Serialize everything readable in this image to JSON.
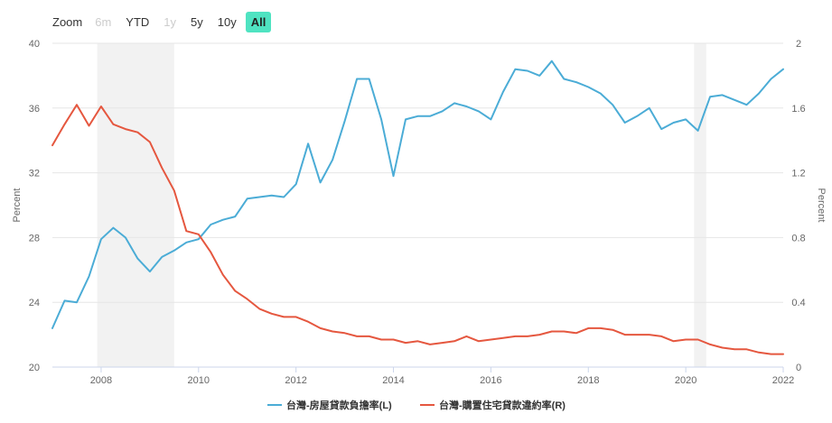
{
  "zoom": {
    "label": "Zoom",
    "buttons": [
      {
        "label": "6m",
        "state": "disabled"
      },
      {
        "label": "YTD",
        "state": "normal"
      },
      {
        "label": "1y",
        "state": "disabled"
      },
      {
        "label": "5y",
        "state": "normal"
      },
      {
        "label": "10y",
        "state": "normal"
      },
      {
        "label": "All",
        "state": "active"
      }
    ]
  },
  "chart_data": {
    "type": "line",
    "xlim": [
      2007.0,
      2022.0
    ],
    "x_ticks": [
      2008,
      2010,
      2012,
      2014,
      2016,
      2018,
      2020,
      2022
    ],
    "y_left": {
      "label": "Percent",
      "ylim": [
        20,
        40
      ],
      "ticks": [
        20,
        24,
        28,
        32,
        36,
        40
      ]
    },
    "y_right": {
      "label": "Percent",
      "ylim": [
        0,
        2
      ],
      "ticks": [
        0,
        0.4,
        0.8,
        1.2,
        1.6,
        2
      ]
    },
    "grid": true,
    "legend_position": "bottom-center",
    "shaded_periods": [
      [
        2007.92,
        2009.5
      ],
      [
        2020.17,
        2020.42
      ]
    ],
    "series": [
      {
        "name": "台灣-房屋貸款負擔率(L)",
        "axis": "left",
        "color": "#4bacd6",
        "points": [
          [
            2007.0,
            22.4
          ],
          [
            2007.25,
            24.1
          ],
          [
            2007.5,
            24.0
          ],
          [
            2007.75,
            25.6
          ],
          [
            2008.0,
            27.9
          ],
          [
            2008.25,
            28.6
          ],
          [
            2008.5,
            28.0
          ],
          [
            2008.75,
            26.7
          ],
          [
            2009.0,
            25.9
          ],
          [
            2009.25,
            26.8
          ],
          [
            2009.5,
            27.2
          ],
          [
            2009.75,
            27.7
          ],
          [
            2010.0,
            27.9
          ],
          [
            2010.25,
            28.8
          ],
          [
            2010.5,
            29.1
          ],
          [
            2010.75,
            29.3
          ],
          [
            2011.0,
            30.4
          ],
          [
            2011.25,
            30.5
          ],
          [
            2011.5,
            30.6
          ],
          [
            2011.75,
            30.5
          ],
          [
            2012.0,
            31.3
          ],
          [
            2012.25,
            33.8
          ],
          [
            2012.5,
            31.4
          ],
          [
            2012.75,
            32.8
          ],
          [
            2013.0,
            35.2
          ],
          [
            2013.25,
            37.8
          ],
          [
            2013.5,
            37.8
          ],
          [
            2013.75,
            35.3
          ],
          [
            2014.0,
            31.8
          ],
          [
            2014.25,
            35.3
          ],
          [
            2014.5,
            35.5
          ],
          [
            2014.75,
            35.5
          ],
          [
            2015.0,
            35.8
          ],
          [
            2015.25,
            36.3
          ],
          [
            2015.5,
            36.1
          ],
          [
            2015.75,
            35.8
          ],
          [
            2016.0,
            35.3
          ],
          [
            2016.25,
            37.0
          ],
          [
            2016.5,
            38.4
          ],
          [
            2016.75,
            38.3
          ],
          [
            2017.0,
            38.0
          ],
          [
            2017.25,
            38.9
          ],
          [
            2017.5,
            37.8
          ],
          [
            2017.75,
            37.6
          ],
          [
            2018.0,
            37.3
          ],
          [
            2018.25,
            36.9
          ],
          [
            2018.5,
            36.2
          ],
          [
            2018.75,
            35.1
          ],
          [
            2019.0,
            35.5
          ],
          [
            2019.25,
            36.0
          ],
          [
            2019.5,
            34.7
          ],
          [
            2019.75,
            35.1
          ],
          [
            2020.0,
            35.3
          ],
          [
            2020.25,
            34.6
          ],
          [
            2020.5,
            36.7
          ],
          [
            2020.75,
            36.8
          ],
          [
            2021.0,
            36.5
          ],
          [
            2021.25,
            36.2
          ],
          [
            2021.5,
            36.9
          ],
          [
            2021.75,
            37.8
          ],
          [
            2022.0,
            38.4
          ]
        ]
      },
      {
        "name": "台灣-購置住宅貸款違約率(R)",
        "axis": "right",
        "color": "#e5573f",
        "points": [
          [
            2007.0,
            1.37
          ],
          [
            2007.25,
            1.5
          ],
          [
            2007.5,
            1.62
          ],
          [
            2007.75,
            1.49
          ],
          [
            2008.0,
            1.61
          ],
          [
            2008.25,
            1.5
          ],
          [
            2008.5,
            1.47
          ],
          [
            2008.75,
            1.45
          ],
          [
            2009.0,
            1.39
          ],
          [
            2009.25,
            1.23
          ],
          [
            2009.5,
            1.09
          ],
          [
            2009.75,
            0.84
          ],
          [
            2010.0,
            0.82
          ],
          [
            2010.25,
            0.71
          ],
          [
            2010.5,
            0.57
          ],
          [
            2010.75,
            0.47
          ],
          [
            2011.0,
            0.42
          ],
          [
            2011.25,
            0.36
          ],
          [
            2011.5,
            0.33
          ],
          [
            2011.75,
            0.31
          ],
          [
            2012.0,
            0.31
          ],
          [
            2012.25,
            0.28
          ],
          [
            2012.5,
            0.24
          ],
          [
            2012.75,
            0.22
          ],
          [
            2013.0,
            0.21
          ],
          [
            2013.25,
            0.19
          ],
          [
            2013.5,
            0.19
          ],
          [
            2013.75,
            0.17
          ],
          [
            2014.0,
            0.17
          ],
          [
            2014.25,
            0.15
          ],
          [
            2014.5,
            0.16
          ],
          [
            2014.75,
            0.14
          ],
          [
            2015.0,
            0.15
          ],
          [
            2015.25,
            0.16
          ],
          [
            2015.5,
            0.19
          ],
          [
            2015.75,
            0.16
          ],
          [
            2016.0,
            0.17
          ],
          [
            2016.25,
            0.18
          ],
          [
            2016.5,
            0.19
          ],
          [
            2016.75,
            0.19
          ],
          [
            2017.0,
            0.2
          ],
          [
            2017.25,
            0.22
          ],
          [
            2017.5,
            0.22
          ],
          [
            2017.75,
            0.21
          ],
          [
            2018.0,
            0.24
          ],
          [
            2018.25,
            0.24
          ],
          [
            2018.5,
            0.23
          ],
          [
            2018.75,
            0.2
          ],
          [
            2019.0,
            0.2
          ],
          [
            2019.25,
            0.2
          ],
          [
            2019.5,
            0.19
          ],
          [
            2019.75,
            0.16
          ],
          [
            2020.0,
            0.17
          ],
          [
            2020.25,
            0.17
          ],
          [
            2020.5,
            0.14
          ],
          [
            2020.75,
            0.12
          ],
          [
            2021.0,
            0.11
          ],
          [
            2021.25,
            0.11
          ],
          [
            2021.5,
            0.09
          ],
          [
            2021.75,
            0.08
          ],
          [
            2022.0,
            0.08
          ]
        ]
      }
    ]
  }
}
